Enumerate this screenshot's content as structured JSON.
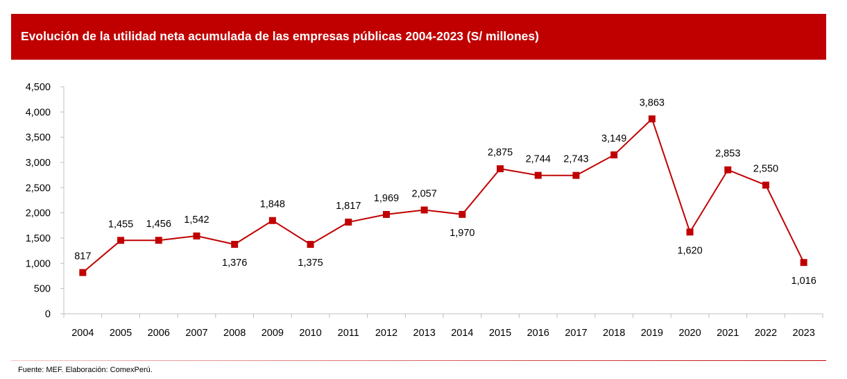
{
  "colors": {
    "accent": "#c00000",
    "axis": "#bfbfbf",
    "text": "#000000",
    "title_text": "#ffffff"
  },
  "chart_data": {
    "type": "line",
    "title": "Evolución de la utilidad neta acumulada de las empresas públicas 2004-2023 (S/ millones)",
    "xlabel": "",
    "ylabel": "",
    "categories": [
      "2004",
      "2005",
      "2006",
      "2007",
      "2008",
      "2009",
      "2010",
      "2011",
      "2012",
      "2013",
      "2014",
      "2015",
      "2016",
      "2017",
      "2018",
      "2019",
      "2020",
      "2021",
      "2022",
      "2023"
    ],
    "values": [
      817,
      1455,
      1456,
      1542,
      1376,
      1848,
      1375,
      1817,
      1969,
      2057,
      1970,
      2875,
      2744,
      2743,
      3149,
      3863,
      1620,
      2853,
      2550,
      1016
    ],
    "data_labels": [
      "817",
      "1,455",
      "1,456",
      "1,542",
      "1,376",
      "1,848",
      "1,375",
      "1,817",
      "1,969",
      "2,057",
      "1,970",
      "2,875",
      "2,744",
      "2,743",
      "3,149",
      "3,863",
      "1,620",
      "2,853",
      "2,550",
      "1,016"
    ],
    "label_position": [
      "above",
      "above",
      "above",
      "above",
      "below",
      "above",
      "below",
      "above",
      "above",
      "above",
      "below",
      "above",
      "above",
      "above",
      "above",
      "above",
      "below",
      "above",
      "above",
      "below"
    ],
    "ylim": [
      0,
      4500
    ],
    "yticks": [
      0,
      500,
      1000,
      1500,
      2000,
      2500,
      3000,
      3500,
      4000,
      4500
    ],
    "ytick_labels": [
      "0",
      "500",
      "1,000",
      "1,500",
      "2,000",
      "2,500",
      "3,000",
      "3,500",
      "4,000",
      "4,500"
    ],
    "grid": false,
    "legend": "none",
    "marker": "square"
  },
  "footer": {
    "source": "Fuente: MEF. Elaboración: ComexPerú."
  }
}
